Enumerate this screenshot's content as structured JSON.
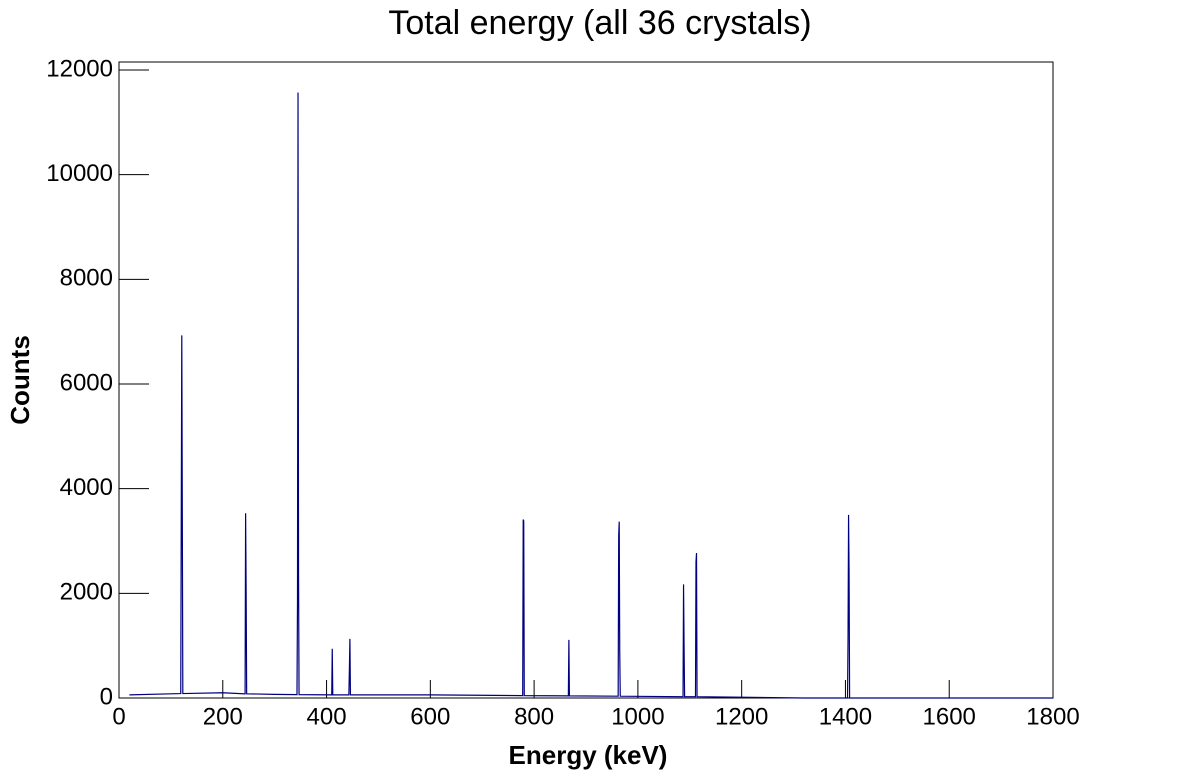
{
  "chart_data": {
    "type": "line",
    "title": "Total energy (all 36 crystals)",
    "x_label": "Energy (keV)",
    "y_label": "Counts",
    "x": [
      20,
      100,
      119,
      121,
      123,
      200,
      243,
      244,
      245,
      246,
      300,
      343,
      344,
      345,
      346,
      347,
      410,
      411,
      412,
      443,
      444,
      445,
      446,
      600,
      778,
      779,
      780,
      781,
      866,
      867,
      868,
      962,
      963,
      964,
      965,
      966,
      1087,
      1088,
      1089,
      1090,
      1111,
      1112,
      1113,
      1114,
      1200,
      1300,
      1320,
      1404,
      1405,
      1406,
      1407,
      1408,
      1800
    ],
    "series": [
      {
        "color": "#000080",
        "values": [
          60,
          80,
          85,
          6930,
          85,
          100,
          80,
          3530,
          2060,
          80,
          70,
          65,
          1850,
          11570,
          2380,
          65,
          60,
          940,
          60,
          60,
          550,
          1130,
          60,
          60,
          45,
          3410,
          3380,
          45,
          40,
          1110,
          40,
          35,
          3100,
          3370,
          900,
          35,
          25,
          2170,
          1000,
          25,
          25,
          2600,
          2770,
          25,
          15,
          3,
          0,
          0,
          1150,
          3500,
          2380,
          0,
          0
        ]
      }
    ],
    "xlim": [
      0,
      1800
    ],
    "xticks": [
      0,
      200,
      400,
      600,
      800,
      1000,
      1200,
      1400,
      1600,
      1800
    ],
    "ylim": [
      0,
      12000
    ],
    "yticks": [
      0,
      2000,
      4000,
      6000,
      8000,
      10000,
      12000
    ]
  }
}
